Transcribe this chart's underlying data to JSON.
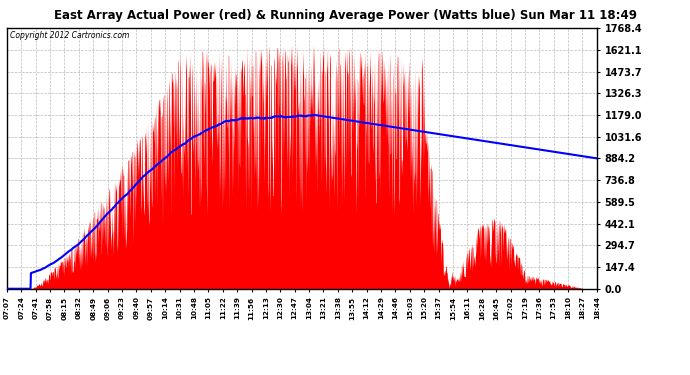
{
  "title": "East Array Actual Power (red) & Running Average Power (Watts blue) Sun Mar 11 18:49",
  "copyright": "Copyright 2012 Cartronics.com",
  "background_color": "#ffffff",
  "plot_bg_color": "#ffffff",
  "grid_color": "#aaaaaa",
  "y_ticks": [
    0.0,
    147.4,
    294.7,
    442.1,
    589.5,
    736.8,
    884.2,
    1031.6,
    1179.0,
    1326.3,
    1473.7,
    1621.1,
    1768.4
  ],
  "x_tick_labels": [
    "07:07",
    "07:24",
    "07:41",
    "07:58",
    "08:15",
    "08:32",
    "08:49",
    "09:06",
    "09:23",
    "09:40",
    "09:57",
    "10:14",
    "10:31",
    "10:48",
    "11:05",
    "11:22",
    "11:39",
    "11:56",
    "12:13",
    "12:30",
    "12:47",
    "13:04",
    "13:21",
    "13:38",
    "13:55",
    "14:12",
    "14:29",
    "14:46",
    "15:03",
    "15:20",
    "15:37",
    "15:54",
    "16:11",
    "16:28",
    "16:45",
    "17:02",
    "17:19",
    "17:36",
    "17:53",
    "18:10",
    "18:27",
    "18:44"
  ],
  "fill_color": "#ff0000",
  "avg_color": "#0000ff",
  "y_max": 1768.4,
  "y_min": 0.0
}
